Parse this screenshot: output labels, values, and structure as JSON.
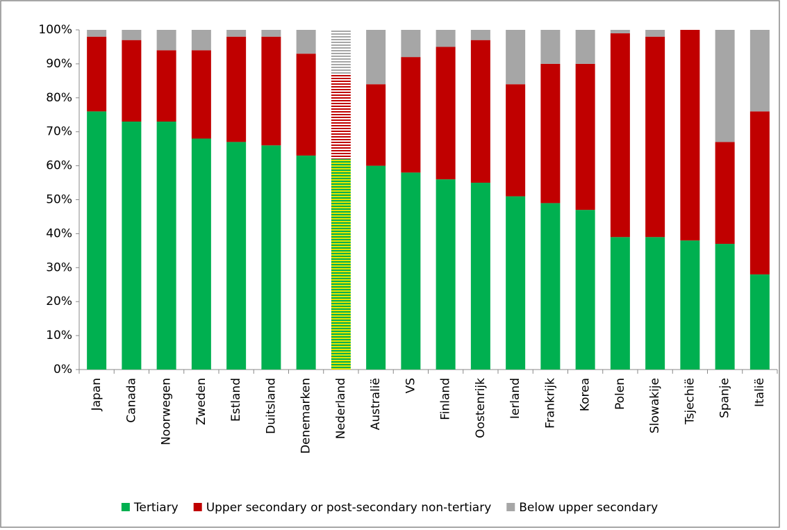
{
  "chart_data": {
    "type": "stacked_bar",
    "categories": [
      "Japan",
      "Canada",
      "Noorwegen",
      "Zweden",
      "Estland",
      "Duitsland",
      "Denemarken",
      "Nederland",
      "Australië",
      "VS",
      "Finland",
      "Oostenrijk",
      "Ierland",
      "Frankrijk",
      "Korea",
      "Polen",
      "Slowakije",
      "Tsjechië",
      "Spanje",
      "Italië"
    ],
    "series": [
      {
        "name": "Tertiary",
        "color": "#00b050",
        "values": [
          76,
          73,
          73,
          68,
          67,
          66,
          63,
          62,
          60,
          58,
          56,
          55,
          51,
          49,
          47,
          39,
          39,
          38,
          37,
          28
        ]
      },
      {
        "name": "Upper secondary or post-secondary non-tertiary",
        "color": "#c00000",
        "values": [
          22,
          24,
          21,
          26,
          31,
          32,
          30,
          25,
          24,
          34,
          39,
          42,
          33,
          41,
          43,
          60,
          59,
          62,
          30,
          48
        ]
      },
      {
        "name": "Below upper secondary",
        "color": "#a6a6a6",
        "values": [
          2,
          3,
          6,
          6,
          2,
          2,
          7,
          13,
          16,
          8,
          5,
          3,
          16,
          10,
          10,
          1,
          2,
          0,
          33,
          24
        ]
      }
    ],
    "hatched_index": 7,
    "ylim": [
      0,
      100
    ],
    "yticks": [
      {
        "value": 0,
        "label": "0%"
      },
      {
        "value": 10,
        "label": "10%"
      },
      {
        "value": 20,
        "label": "20%"
      },
      {
        "value": 30,
        "label": "30%"
      },
      {
        "value": 40,
        "label": "40%"
      },
      {
        "value": 50,
        "label": "50%"
      },
      {
        "value": 60,
        "label": "60%"
      },
      {
        "value": 70,
        "label": "70%"
      },
      {
        "value": 80,
        "label": "80%"
      },
      {
        "value": 90,
        "label": "90%"
      },
      {
        "value": 100,
        "label": "100%"
      }
    ],
    "grid": false,
    "legend": "bottom"
  }
}
